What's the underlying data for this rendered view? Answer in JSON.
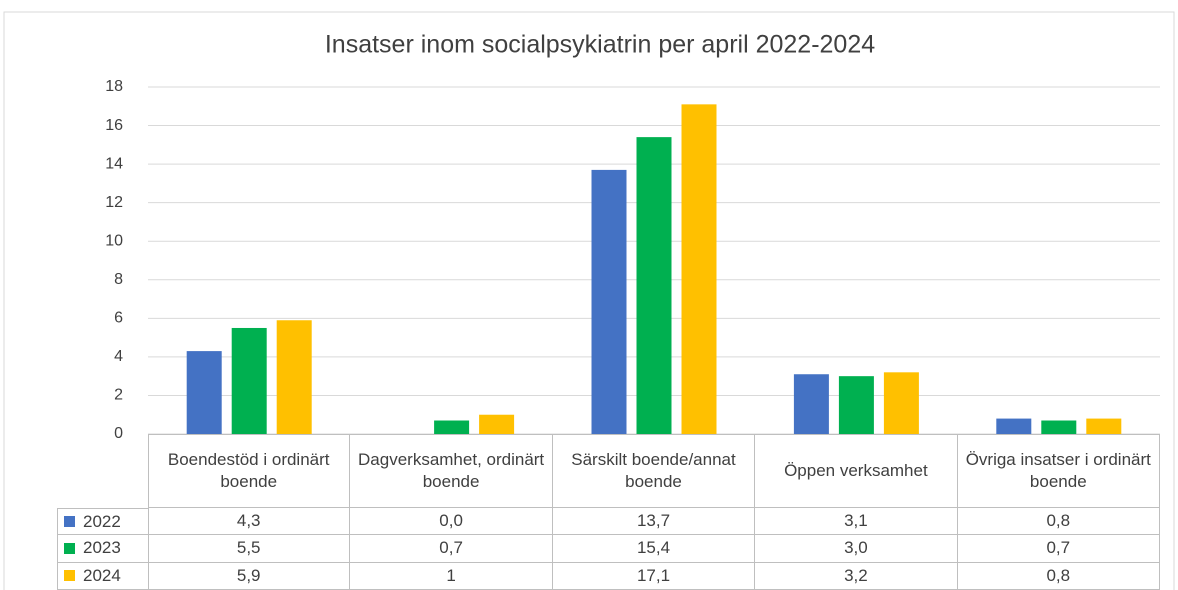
{
  "chart_data": {
    "type": "bar",
    "title": "Insatser inom socialpsykiatrin per april 2022-2024",
    "categories": [
      "Boendestöd i ordinärt boende",
      "Dagverksamhet, ordinärt boende",
      "Särskilt boende/annat boende",
      "Öppen verksamhet",
      "Övriga insatser i ordinärt boende"
    ],
    "series": [
      {
        "name": "2022",
        "color": "#4472c4",
        "values": [
          4.3,
          0.0,
          13.7,
          3.1,
          0.8
        ],
        "value_labels": [
          "4,3",
          "0,0",
          "13,7",
          "3,1",
          "0,8"
        ]
      },
      {
        "name": "2023",
        "color": "#00b050",
        "values": [
          5.5,
          0.7,
          15.4,
          3.0,
          0.7
        ],
        "value_labels": [
          "5,5",
          "0,7",
          "15,4",
          "3,0",
          "0,7"
        ]
      },
      {
        "name": "2024",
        "color": "#ffc000",
        "values": [
          5.9,
          1,
          17.1,
          3.2,
          0.8
        ],
        "value_labels": [
          "5,9",
          "1",
          "17,1",
          "3,2",
          "0,8"
        ]
      }
    ],
    "ylim": [
      0,
      18
    ],
    "yticks": [
      0,
      2,
      4,
      6,
      8,
      10,
      12,
      14,
      16,
      18
    ],
    "grid": true
  }
}
